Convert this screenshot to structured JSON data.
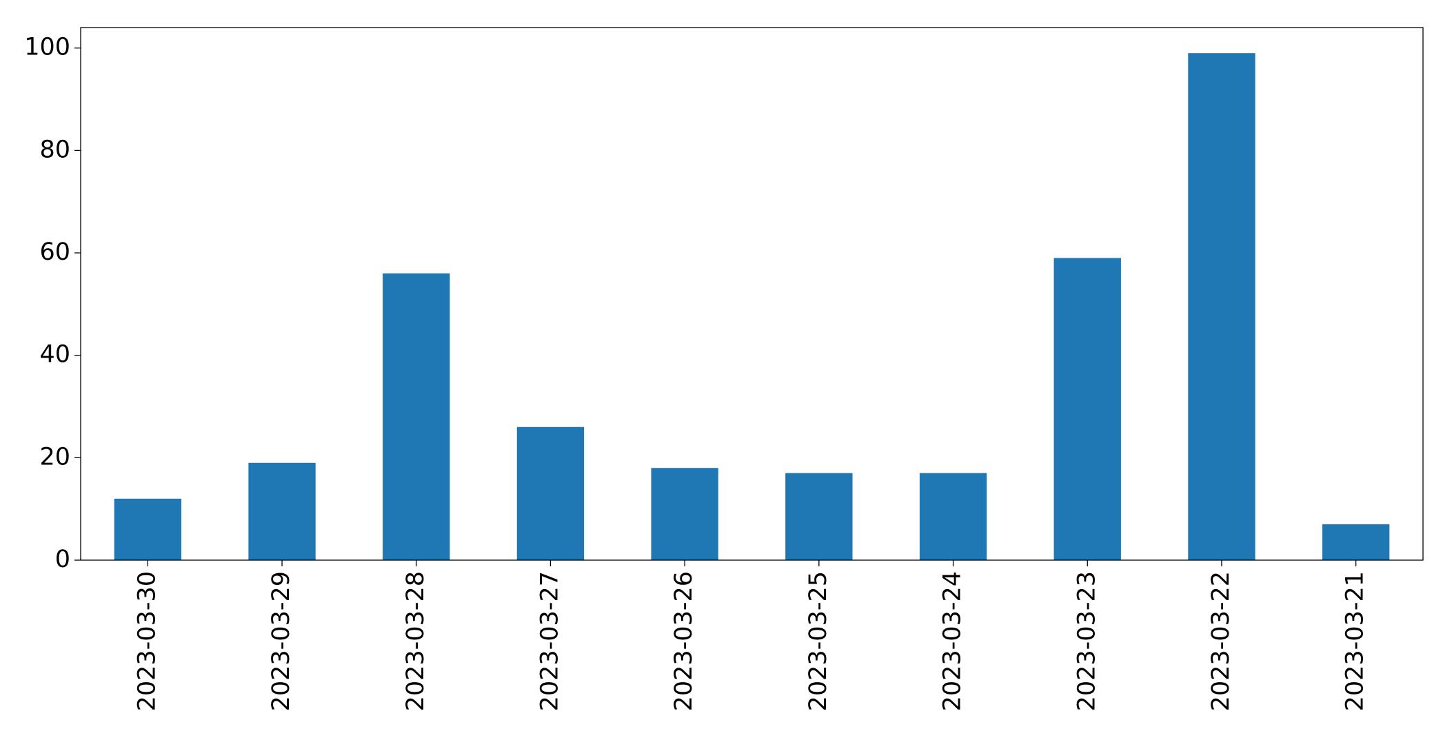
{
  "chart_data": {
    "type": "bar",
    "categories": [
      "2023-03-30",
      "2023-03-29",
      "2023-03-28",
      "2023-03-27",
      "2023-03-26",
      "2023-03-25",
      "2023-03-24",
      "2023-03-23",
      "2023-03-22",
      "2023-03-21"
    ],
    "values": [
      12,
      19,
      56,
      26,
      18,
      17,
      17,
      59,
      99,
      7
    ],
    "color": "#1f77b4",
    "ylim": [
      0,
      104
    ],
    "yticks": [
      0,
      20,
      40,
      60,
      80,
      100
    ],
    "grid": false
  }
}
